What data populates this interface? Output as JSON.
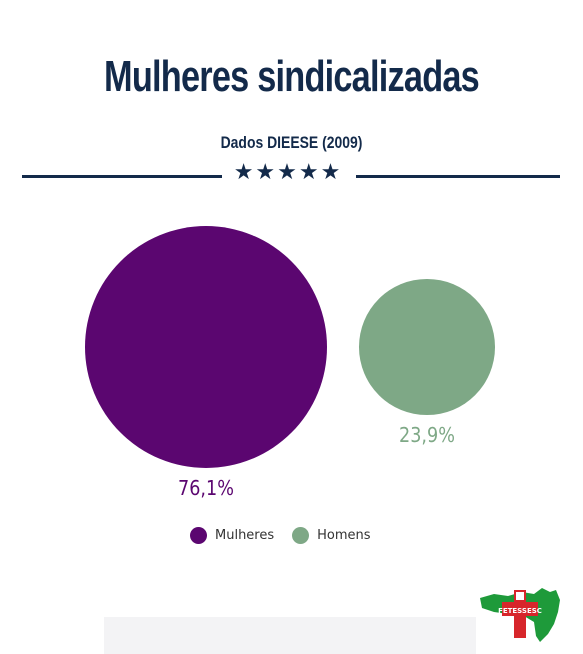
{
  "header": {
    "title": "Mulheres sindicalizadas",
    "subtitle": "Dados DIEESE (2009)",
    "stars": "★★★★★"
  },
  "chart_data": {
    "type": "bubble",
    "categories": [
      "Mulheres",
      "Homens"
    ],
    "values": [
      76.1,
      23.9
    ],
    "value_labels": [
      "76,1%",
      "23,9%"
    ],
    "unit": "%",
    "colors": [
      "#5b0670",
      "#7ea886"
    ],
    "legend_position": "bottom"
  },
  "legend": {
    "items": [
      {
        "label": "Mulheres",
        "color": "#5b0670"
      },
      {
        "label": "Homens",
        "color": "#7ea886"
      }
    ]
  },
  "logo": {
    "text": "FETESSESC",
    "primary_color": "#d7262b",
    "secondary_color": "#1e9a3a"
  },
  "colors": {
    "navy": "#132a4a"
  }
}
